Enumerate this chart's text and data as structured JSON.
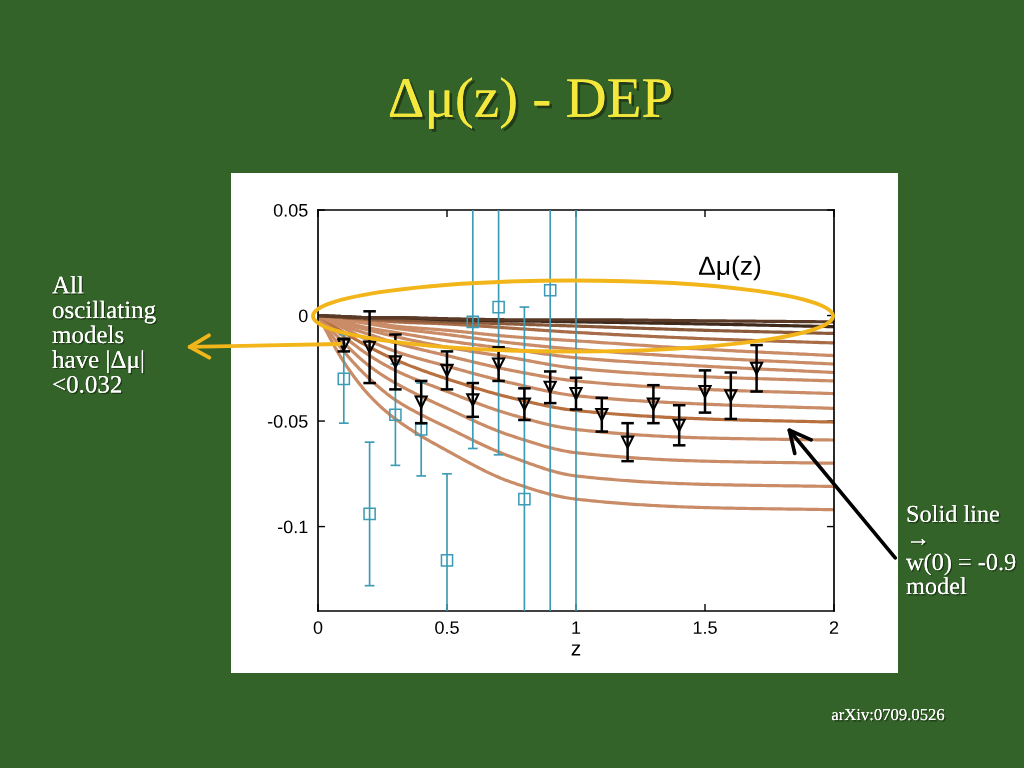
{
  "chart_data": {
    "type": "line",
    "title": "Δμ(z) - DEP",
    "xlabel": "z",
    "xlim": [
      0,
      2
    ],
    "xticks": [
      0,
      0.5,
      1,
      1.5,
      2
    ],
    "ylim": [
      -0.14,
      0.05
    ],
    "yticks": [
      -0.1,
      -0.05,
      0,
      0.05
    ],
    "x": [
      0,
      0.1,
      0.2,
      0.3,
      0.5,
      0.75,
      1,
      1.5,
      2
    ],
    "series": [
      {
        "color": "#c98c66",
        "values": [
          0,
          -0.022,
          -0.038,
          -0.049,
          -0.064,
          -0.079,
          -0.087,
          -0.091,
          -0.092
        ]
      },
      {
        "color": "#c98c66",
        "values": [
          0,
          -0.017,
          -0.03,
          -0.04,
          -0.053,
          -0.067,
          -0.076,
          -0.08,
          -0.081
        ]
      },
      {
        "color": "#c98c66",
        "values": [
          0,
          -0.013,
          -0.024,
          -0.032,
          -0.044,
          -0.057,
          -0.065,
          -0.069,
          -0.07
        ]
      },
      {
        "color": "#c98c66",
        "values": [
          0,
          -0.01,
          -0.019,
          -0.026,
          -0.036,
          -0.047,
          -0.054,
          -0.058,
          -0.059
        ]
      },
      {
        "color": "#b8703f",
        "values": [
          0,
          -0.008,
          -0.015,
          -0.021,
          -0.03,
          -0.039,
          -0.045,
          -0.049,
          -0.0505
        ]
      },
      {
        "color": "#c98c66",
        "values": [
          0,
          -0.006,
          -0.012,
          -0.017,
          -0.024,
          -0.032,
          -0.038,
          -0.042,
          -0.044
        ]
      },
      {
        "color": "#c98c66",
        "values": [
          0,
          -0.005,
          -0.009,
          -0.013,
          -0.019,
          -0.026,
          -0.031,
          -0.035,
          -0.037
        ]
      },
      {
        "color": "#c98c66",
        "values": [
          0,
          -0.004,
          -0.007,
          -0.01,
          -0.015,
          -0.02,
          -0.025,
          -0.029,
          -0.031
        ]
      },
      {
        "color": "#c98c66",
        "values": [
          0,
          -0.003,
          -0.006,
          -0.008,
          -0.012,
          -0.016,
          -0.02,
          -0.024,
          -0.027
        ]
      },
      {
        "color": "#c98c66",
        "values": [
          0,
          -0.002,
          -0.004,
          -0.006,
          -0.009,
          -0.013,
          -0.016,
          -0.02,
          -0.023
        ]
      },
      {
        "color": "#c98c66",
        "values": [
          0,
          -0.002,
          -0.003,
          -0.005,
          -0.007,
          -0.01,
          -0.012,
          -0.016,
          -0.019
        ]
      },
      {
        "color": "#a86d48",
        "values": [
          0,
          -0.001,
          -0.002,
          -0.003,
          -0.004,
          -0.006,
          -0.008,
          -0.011,
          -0.013
        ]
      },
      {
        "color": "#8a5a3a",
        "values": [
          0,
          -0.001,
          -0.0015,
          -0.002,
          -0.003,
          -0.004,
          -0.005,
          -0.007,
          -0.0085
        ]
      },
      {
        "color": "#3f2a1c",
        "values": [
          0,
          -0.0005,
          -0.001,
          -0.001,
          -0.002,
          -0.0025,
          -0.003,
          -0.004,
          -0.0053
        ]
      },
      {
        "color": "#5a3a26",
        "values": [
          0,
          -0.0005,
          -0.001,
          -0.001,
          -0.0015,
          -0.002,
          -0.002,
          -0.0025,
          -0.003
        ]
      },
      {
        "type": "scatter",
        "color": "#3d9bb5",
        "marker": "square",
        "x": [
          0.1,
          0.2,
          0.3,
          0.4,
          0.5,
          0.6,
          0.7,
          0.8,
          0.9
        ],
        "values": [
          -0.03,
          -0.094,
          -0.047,
          -0.054,
          -0.116,
          -0.003,
          0.004,
          -0.087,
          0.012
        ],
        "errors": [
          0.021,
          0.034,
          0.024,
          0.022,
          [
            -0.14,
            -0.075
          ],
          [
            -0.063,
            0.05
          ],
          [
            -0.066,
            0.05
          ],
          [
            -0.14,
            0.004
          ],
          [
            -0.14,
            0.05
          ]
        ]
      },
      {
        "type": "scatter",
        "color": "#000000",
        "marker": "triangle",
        "x": [
          0.1,
          0.2,
          0.3,
          0.4,
          0.5,
          0.6,
          0.7,
          0.8,
          0.9,
          1.0,
          1.1,
          1.2,
          1.3,
          1.4,
          1.5,
          1.6,
          1.7
        ],
        "values": [
          -0.014,
          -0.015,
          -0.022,
          -0.041,
          -0.026,
          -0.04,
          -0.023,
          -0.042,
          -0.034,
          -0.037,
          -0.047,
          -0.06,
          -0.042,
          -0.052,
          -0.036,
          -0.038,
          -0.025
        ],
        "errors": [
          0.003,
          0.017,
          0.013,
          0.01,
          0.009,
          0.008,
          0.008,
          0.0075,
          0.0075,
          0.0075,
          0.008,
          0.009,
          0.009,
          0.0095,
          0.01,
          0.011,
          0.011
        ]
      }
    ],
    "ref_lines": [
      {
        "axis": "x",
        "value": 1,
        "color": "#3d9bb5"
      }
    ],
    "annotations": [
      "Δμ(z)",
      "All\noscillating\nmodels\nhave |Δμ|\n<0.032",
      "Solid line\n→\nw(0) = -0.9\nmodel",
      "arXiv:0709.0526"
    ]
  }
}
